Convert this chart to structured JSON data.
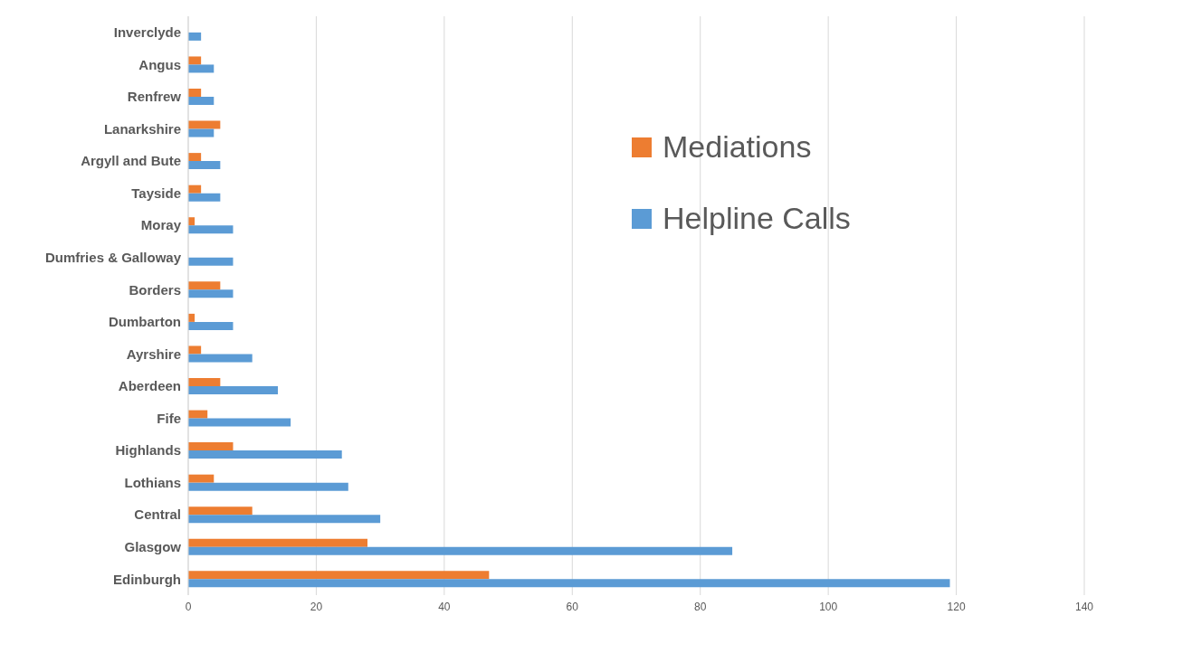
{
  "chart_data": {
    "type": "bar",
    "orientation": "horizontal",
    "categories": [
      "Inverclyde",
      "Angus",
      "Renfrew",
      "Lanarkshire",
      "Argyll and Bute",
      "Tayside",
      "Moray",
      "Dumfries & Galloway",
      "Borders",
      "Dumbarton",
      "Ayrshire",
      "Aberdeen",
      "Fife",
      "Highlands",
      "Lothians",
      "Central",
      "Glasgow",
      "Edinburgh"
    ],
    "series": [
      {
        "name": "Mediations",
        "color": "#ed7d31",
        "values": [
          0,
          2,
          2,
          5,
          2,
          2,
          1,
          0,
          5,
          1,
          2,
          5,
          3,
          7,
          4,
          10,
          28,
          47
        ]
      },
      {
        "name": "Helpline Calls",
        "color": "#5b9bd5",
        "values": [
          2,
          4,
          4,
          4,
          5,
          5,
          7,
          7,
          7,
          7,
          10,
          14,
          16,
          24,
          25,
          30,
          85,
          119
        ]
      }
    ],
    "xlim": [
      0,
      140
    ],
    "xticks": [
      0,
      20,
      40,
      60,
      80,
      100,
      120,
      140
    ],
    "grid": "x",
    "legend": "top right"
  }
}
